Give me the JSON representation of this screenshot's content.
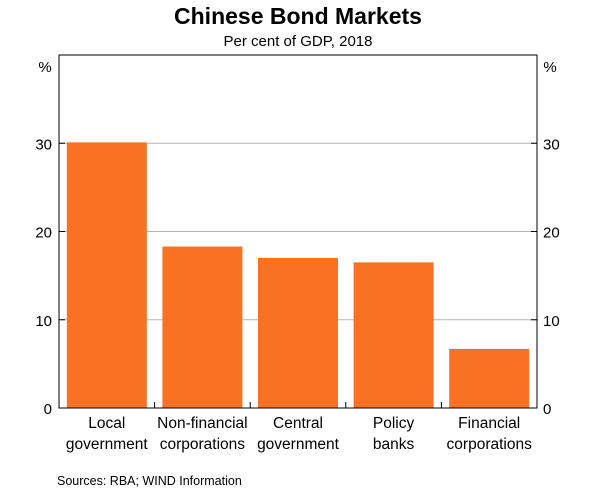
{
  "chart_data": {
    "type": "bar",
    "title": "Chinese Bond Markets",
    "subtitle": "Per cent of GDP, 2018",
    "ylabel_left": "%",
    "ylabel_right": "%",
    "ylim": [
      0,
      40
    ],
    "yticks": [
      "0",
      "10",
      "20",
      "30"
    ],
    "categories": [
      [
        "Local",
        "government"
      ],
      [
        "Non-financial",
        "corporations"
      ],
      [
        "Central",
        "government"
      ],
      [
        "Policy",
        "banks"
      ],
      [
        "Financial",
        "corporations"
      ]
    ],
    "values": [
      30.1,
      18.3,
      17.0,
      16.5,
      6.7
    ],
    "bar_color": "#f97122",
    "grid": true,
    "legend": "none",
    "source": "Sources:   RBA; WIND Information"
  }
}
